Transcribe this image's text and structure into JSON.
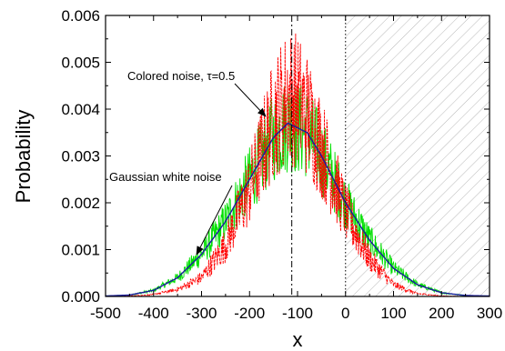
{
  "chart_data": {
    "type": "line",
    "xlabel": "x",
    "ylabel": "Probability",
    "xlim": [
      -500,
      300
    ],
    "ylim": [
      0,
      0.006
    ],
    "x_ticks": [
      "-500",
      "-400",
      "-300",
      "-200",
      "-100",
      "0",
      "100",
      "200",
      "300"
    ],
    "y_ticks": [
      "0.000",
      "0.001",
      "0.002",
      "0.003",
      "0.004",
      "0.005",
      "0.006"
    ],
    "x_tick_values": [
      -500,
      -400,
      -300,
      -200,
      -100,
      0,
      100,
      200,
      300
    ],
    "y_tick_values": [
      0,
      0.001,
      0.002,
      0.003,
      0.004,
      0.005,
      0.006
    ],
    "vertical_lines": [
      {
        "x": -112,
        "style": "dash-dot"
      },
      {
        "x": 0,
        "style": "dotted"
      }
    ],
    "shaded_region": {
      "x_from": 0,
      "x_to": 300,
      "pattern": "diagonal-hatch"
    },
    "series": [
      {
        "color": "#00e000",
        "style": "noisy-histogram",
        "x": [
          -500,
          -450,
          -400,
          -350,
          -300,
          -250,
          -200,
          -150,
          -120,
          -100,
          -80,
          -50,
          0,
          50,
          100,
          150,
          200,
          250,
          300
        ],
        "y": [
          1e-05,
          3e-05,
          0.00013,
          0.0004,
          0.0009,
          0.0016,
          0.0025,
          0.0034,
          0.0037,
          0.0036,
          0.0035,
          0.003,
          0.002,
          0.0012,
          0.0006,
          0.00025,
          8e-05,
          2e-05,
          1e-05
        ]
      },
      {
        "color": "#ff0000",
        "style": "noisy-dashed",
        "x": [
          -500,
          -450,
          -400,
          -350,
          -300,
          -250,
          -200,
          -150,
          -120,
          -100,
          -80,
          -50,
          0,
          50,
          100,
          150,
          200,
          250,
          300
        ],
        "y": [
          0,
          1e-05,
          4e-05,
          0.00015,
          0.0004,
          0.0011,
          0.0023,
          0.0038,
          0.0043,
          0.0042,
          0.0039,
          0.0032,
          0.0018,
          0.0008,
          0.00025,
          6e-05,
          1e-05,
          0,
          0
        ]
      },
      {
        "color": "#1a1aa0",
        "style": "solid",
        "x": [
          -500,
          -450,
          -400,
          -350,
          -300,
          -250,
          -200,
          -150,
          -120,
          -100,
          -80,
          -50,
          0,
          50,
          100,
          150,
          200,
          250,
          300
        ],
        "y": [
          1e-05,
          3e-05,
          0.00013,
          0.0004,
          0.0009,
          0.0016,
          0.0025,
          0.0034,
          0.0037,
          0.0036,
          0.0035,
          0.003,
          0.002,
          0.0012,
          0.0006,
          0.00025,
          8e-05,
          2e-05,
          1e-05
        ]
      }
    ],
    "annotations": [
      {
        "text": "Colored noise, τ=0.5",
        "arrow_to": [
          -150,
          0.0037
        ]
      },
      {
        "text": "Gaussian white noise",
        "arrow_to": [
          -300,
          0.0009
        ]
      }
    ]
  }
}
